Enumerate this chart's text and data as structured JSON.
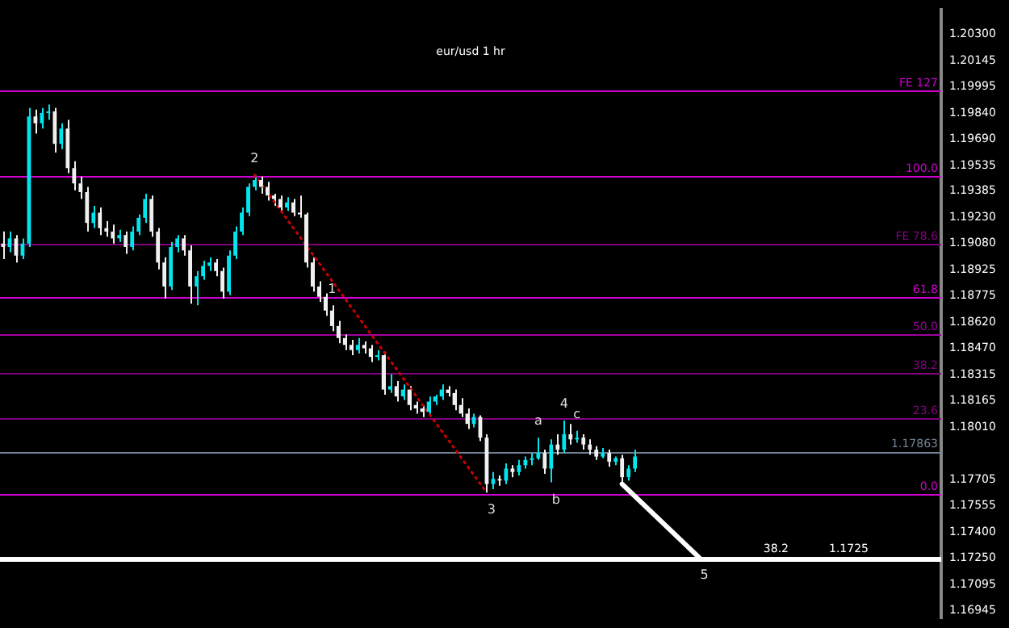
{
  "chart_data": {
    "type": "candlestick",
    "title": "eur/usd 1 hr",
    "categories": [
      null,
      null,
      null,
      null,
      null,
      null,
      null,
      null,
      null,
      null,
      null,
      null,
      null,
      null,
      null,
      null,
      null,
      null,
      null,
      null,
      null,
      null,
      null,
      null,
      null,
      null,
      null,
      null,
      null,
      null,
      null,
      null,
      null,
      null,
      null,
      null,
      null,
      null,
      null,
      null,
      null,
      null,
      null,
      null,
      null,
      null,
      null,
      null,
      null,
      null,
      null,
      null,
      null,
      null,
      null,
      null,
      null,
      null,
      null,
      null,
      null,
      null,
      null,
      null,
      null,
      null,
      null,
      null,
      null,
      null,
      null,
      null,
      null,
      null,
      null,
      null,
      null,
      null,
      null,
      null,
      null,
      null,
      null,
      null,
      null,
      null,
      null,
      null,
      null,
      null,
      null,
      null,
      null,
      null,
      null,
      null,
      null,
      null,
      null,
      null,
      null,
      null,
      null,
      null,
      null,
      null,
      null,
      null,
      null,
      null,
      null,
      null,
      null,
      null,
      null,
      null,
      null,
      null,
      null,
      null,
      null,
      null,
      null,
      null,
      null,
      null,
      null,
      null,
      null,
      null,
      null,
      null,
      null,
      null,
      null,
      null,
      null,
      null,
      null,
      null,
      null,
      null,
      null,
      null,
      null,
      null
    ],
    "ohlc": [
      [
        1.1908,
        1.1915,
        1.1899,
        1.1906
      ],
      [
        1.1906,
        1.1915,
        1.1903,
        1.1911
      ],
      [
        1.1911,
        1.1913,
        1.1897,
        1.1901
      ],
      [
        1.1901,
        1.1911,
        1.1899,
        1.1908
      ],
      [
        1.1908,
        1.1987,
        1.1906,
        1.1982
      ],
      [
        1.1982,
        1.1986,
        1.1972,
        1.1978
      ],
      [
        1.1978,
        1.1987,
        1.1975,
        1.1984
      ],
      [
        1.1984,
        1.1989,
        1.198,
        1.1985
      ],
      [
        1.1985,
        1.1987,
        1.1961,
        1.1966
      ],
      [
        1.1966,
        1.1978,
        1.1963,
        1.1975
      ],
      [
        1.1975,
        1.198,
        1.1949,
        1.1952
      ],
      [
        1.1952,
        1.1956,
        1.1939,
        1.1943
      ],
      [
        1.1943,
        1.1947,
        1.1934,
        1.1938
      ],
      [
        1.1938,
        1.1941,
        1.1915,
        1.192
      ],
      [
        1.192,
        1.193,
        1.1917,
        1.1926
      ],
      [
        1.1926,
        1.1929,
        1.1913,
        1.1917
      ],
      [
        1.1917,
        1.1921,
        1.1912,
        1.1915
      ],
      [
        1.1915,
        1.1919,
        1.1908,
        1.1911
      ],
      [
        1.1911,
        1.1916,
        1.1909,
        1.1913
      ],
      [
        1.1913,
        1.1915,
        1.1902,
        1.1906
      ],
      [
        1.1906,
        1.1918,
        1.1904,
        1.1915
      ],
      [
        1.1915,
        1.1925,
        1.1913,
        1.1923
      ],
      [
        1.1923,
        1.1937,
        1.192,
        1.1934
      ],
      [
        1.1934,
        1.1936,
        1.1912,
        1.1915
      ],
      [
        1.1915,
        1.1917,
        1.1893,
        1.1897
      ],
      [
        1.1897,
        1.19,
        1.1876,
        1.1883
      ],
      [
        1.1883,
        1.1909,
        1.1881,
        1.1906
      ],
      [
        1.1906,
        1.1913,
        1.1903,
        1.1911
      ],
      [
        1.1911,
        1.1913,
        1.1901,
        1.1904
      ],
      [
        1.1904,
        1.1907,
        1.1873,
        1.1883
      ],
      [
        1.1883,
        1.1892,
        1.1872,
        1.1889
      ],
      [
        1.1889,
        1.1898,
        1.1887,
        1.1895
      ],
      [
        1.1895,
        1.19,
        1.1892,
        1.1897
      ],
      [
        1.1897,
        1.1899,
        1.1889,
        1.1892
      ],
      [
        1.1892,
        1.1894,
        1.1876,
        1.188
      ],
      [
        1.188,
        1.1904,
        1.1878,
        1.1901
      ],
      [
        1.1901,
        1.1918,
        1.1899,
        1.1915
      ],
      [
        1.1915,
        1.1929,
        1.1913,
        1.1926
      ],
      [
        1.1926,
        1.1943,
        1.1924,
        1.1941
      ],
      [
        1.1941,
        1.1948,
        1.1939,
        1.1945
      ],
      [
        1.1945,
        1.1947,
        1.1937,
        1.1941
      ],
      [
        1.1941,
        1.1944,
        1.1933,
        1.1936
      ],
      [
        1.1936,
        1.1937,
        1.193,
        1.1934
      ],
      [
        1.1934,
        1.1936,
        1.1926,
        1.1929
      ],
      [
        1.1929,
        1.1935,
        1.1927,
        1.1932
      ],
      [
        1.1932,
        1.1934,
        1.1924,
        1.1926
      ],
      [
        1.1926,
        1.1936,
        1.1923,
        1.1925
      ],
      [
        1.1925,
        1.1926,
        1.1894,
        1.1897
      ],
      [
        1.1897,
        1.19,
        1.188,
        1.1883
      ],
      [
        1.1883,
        1.1886,
        1.1874,
        1.1877
      ],
      [
        1.1877,
        1.1879,
        1.1866,
        1.1869
      ],
      [
        1.1869,
        1.1872,
        1.1857,
        1.186
      ],
      [
        1.186,
        1.1863,
        1.185,
        1.1853
      ],
      [
        1.1853,
        1.1855,
        1.1846,
        1.1849
      ],
      [
        1.1849,
        1.1852,
        1.1843,
        1.1846
      ],
      [
        1.1846,
        1.1853,
        1.1844,
        1.1849
      ],
      [
        1.1849,
        1.1851,
        1.1844,
        1.1847
      ],
      [
        1.1847,
        1.1849,
        1.1839,
        1.1842
      ],
      [
        1.1842,
        1.1846,
        1.184,
        1.1843
      ],
      [
        1.1843,
        1.1845,
        1.182,
        1.1823
      ],
      [
        1.1823,
        1.1832,
        1.1821,
        1.1825
      ],
      [
        1.1825,
        1.1828,
        1.1816,
        1.1819
      ],
      [
        1.1819,
        1.1826,
        1.1817,
        1.1823
      ],
      [
        1.1823,
        1.1825,
        1.1811,
        1.1814
      ],
      [
        1.1814,
        1.1816,
        1.1809,
        1.1812
      ],
      [
        1.1812,
        1.1814,
        1.1807,
        1.181
      ],
      [
        1.181,
        1.1819,
        1.1808,
        1.1816
      ],
      [
        1.1816,
        1.182,
        1.1814,
        1.1819
      ],
      [
        1.1819,
        1.1826,
        1.1817,
        1.1823
      ],
      [
        1.1823,
        1.1825,
        1.1819,
        1.1821
      ],
      [
        1.1821,
        1.1823,
        1.1811,
        1.1814
      ],
      [
        1.1814,
        1.1818,
        1.1807,
        1.1809
      ],
      [
        1.1809,
        1.1812,
        1.18,
        1.1803
      ],
      [
        1.1803,
        1.1809,
        1.1801,
        1.1807
      ],
      [
        1.1807,
        1.1808,
        1.1793,
        1.1795
      ],
      [
        1.1795,
        1.1797,
        1.1763,
        1.1768
      ],
      [
        1.1768,
        1.1775,
        1.1765,
        1.1771
      ],
      [
        1.1771,
        1.1773,
        1.1767,
        1.177
      ],
      [
        1.177,
        1.178,
        1.1768,
        1.1777
      ],
      [
        1.1777,
        1.1779,
        1.1772,
        1.1775
      ],
      [
        1.1775,
        1.1782,
        1.1773,
        1.1779
      ],
      [
        1.1779,
        1.1784,
        1.1777,
        1.1782
      ],
      [
        1.1782,
        1.1786,
        1.1779,
        1.1783
      ],
      [
        1.1783,
        1.1795,
        1.1782,
        1.1786
      ],
      [
        1.1786,
        1.1788,
        1.1774,
        1.1777
      ],
      [
        1.1777,
        1.1794,
        1.1769,
        1.1791
      ],
      [
        1.1791,
        1.1797,
        1.1785,
        1.1788
      ],
      [
        1.1788,
        1.1805,
        1.1786,
        1.1797
      ],
      [
        1.1797,
        1.1803,
        1.1791,
        1.1794
      ],
      [
        1.1794,
        1.1799,
        1.1792,
        1.1795
      ],
      [
        1.1795,
        1.1797,
        1.1788,
        1.1791
      ],
      [
        1.1791,
        1.1794,
        1.1785,
        1.1788
      ],
      [
        1.1788,
        1.179,
        1.1782,
        1.1784
      ],
      [
        1.1784,
        1.1789,
        1.1783,
        1.1786
      ],
      [
        1.1786,
        1.1788,
        1.1778,
        1.1781
      ],
      [
        1.1781,
        1.1784,
        1.1779,
        1.1783
      ],
      [
        1.1783,
        1.1785,
        1.1768,
        1.1772
      ],
      [
        1.1772,
        1.1779,
        1.177,
        1.1777
      ],
      [
        1.1777,
        1.1788,
        1.1775,
        1.1784
      ],
      null,
      null,
      null,
      null,
      null,
      null,
      null,
      null,
      null,
      null,
      null,
      null,
      null,
      null,
      null,
      null,
      null,
      null,
      null,
      null,
      null,
      null,
      null,
      null,
      null,
      null,
      null,
      null,
      null,
      null,
      null,
      null,
      null,
      null,
      null,
      null,
      null,
      null,
      null,
      null,
      null,
      null,
      null,
      null,
      null,
      null,
      null
    ],
    "series": [
      {
        "type": "line",
        "color": "#ffffff",
        "line_style": "solid",
        "values": [
          null,
          null,
          null,
          null,
          null,
          null,
          null,
          null,
          null,
          null,
          null,
          null,
          null,
          null,
          null,
          null,
          null,
          null,
          null,
          null,
          null,
          null,
          null,
          null,
          null,
          null,
          null,
          null,
          null,
          null,
          null,
          null,
          null,
          null,
          null,
          null,
          null,
          null,
          null,
          null,
          null,
          null,
          null,
          null,
          null,
          null,
          null,
          null,
          null,
          null,
          null,
          null,
          null,
          null,
          null,
          null,
          null,
          null,
          null,
          null,
          null,
          null,
          null,
          null,
          null,
          null,
          null,
          null,
          null,
          null,
          null,
          null,
          null,
          null,
          null,
          null,
          null,
          null,
          null,
          null,
          null,
          null,
          null,
          null,
          null,
          null,
          null,
          null,
          null,
          null,
          null,
          null,
          null,
          null,
          null,
          null,
          1.1768,
          null,
          null,
          null,
          null,
          null,
          null,
          null,
          null,
          null,
          null,
          null,
          1.1725,
          null,
          null,
          null,
          null,
          null,
          null,
          null,
          null,
          null,
          null,
          null,
          null,
          null,
          null,
          null,
          null,
          null,
          null,
          null,
          null,
          null,
          null,
          null,
          null,
          null,
          null,
          null,
          null,
          null,
          null,
          null,
          null,
          null,
          null,
          null,
          null,
          null
        ]
      },
      {
        "type": "line",
        "color": "#cc0000",
        "line_style": "dotted",
        "values": [
          null,
          null,
          null,
          null,
          null,
          null,
          null,
          null,
          null,
          null,
          null,
          null,
          null,
          null,
          null,
          null,
          null,
          null,
          null,
          null,
          null,
          null,
          null,
          null,
          null,
          null,
          null,
          null,
          null,
          null,
          null,
          null,
          null,
          null,
          null,
          null,
          null,
          null,
          null,
          1.1948,
          null,
          null,
          null,
          null,
          null,
          null,
          null,
          null,
          null,
          null,
          null,
          null,
          null,
          null,
          null,
          null,
          null,
          null,
          null,
          null,
          null,
          null,
          null,
          null,
          null,
          null,
          null,
          null,
          null,
          null,
          null,
          null,
          null,
          null,
          null,
          1.1763,
          null,
          null,
          null,
          null,
          null,
          null,
          null,
          null,
          null,
          null,
          null,
          null,
          null,
          null,
          null,
          null,
          null,
          null,
          null,
          null,
          null,
          null,
          null,
          null,
          null,
          null,
          null,
          null,
          null,
          null,
          null,
          null,
          null,
          null,
          null,
          null,
          null,
          null,
          null,
          null,
          null,
          null,
          null,
          null,
          null,
          null,
          null,
          null,
          null,
          null,
          null,
          null,
          null,
          null,
          null,
          null,
          null,
          null,
          null,
          null,
          null,
          null,
          null,
          null,
          null,
          null,
          null,
          null,
          null,
          null
        ]
      }
    ],
    "ylim": [
      1.169,
      1.2044
    ],
    "yticks": [
      {
        "value": 1.203,
        "label": "1.20300"
      },
      {
        "value": 1.20145,
        "label": "1.20145"
      },
      {
        "value": 1.19995,
        "label": "1.19995"
      },
      {
        "value": 1.1984,
        "label": "1.19840"
      },
      {
        "value": 1.1969,
        "label": "1.19690"
      },
      {
        "value": 1.19535,
        "label": "1.19535"
      },
      {
        "value": 1.19385,
        "label": "1.19385"
      },
      {
        "value": 1.1923,
        "label": "1.19230"
      },
      {
        "value": 1.1908,
        "label": "1.19080"
      },
      {
        "value": 1.18925,
        "label": "1.18925"
      },
      {
        "value": 1.18775,
        "label": "1.18775"
      },
      {
        "value": 1.1862,
        "label": "1.18620"
      },
      {
        "value": 1.1847,
        "label": "1.18470"
      },
      {
        "value": 1.18315,
        "label": "1.18315"
      },
      {
        "value": 1.18165,
        "label": "1.18165"
      },
      {
        "value": 1.1801,
        "label": "1.18010"
      },
      {
        "value": 1.17705,
        "label": "1.17705"
      },
      {
        "value": 1.17555,
        "label": "1.17555"
      },
      {
        "value": 1.174,
        "label": "1.17400"
      },
      {
        "value": 1.1725,
        "label": "1.17250"
      },
      {
        "value": 1.17095,
        "label": "1.17095"
      },
      {
        "value": 1.16945,
        "label": "1.16945"
      }
    ],
    "ref_lines": [
      {
        "axis": "y",
        "value": 1.1997,
        "color": "#d000d0"
      },
      {
        "axis": "y",
        "value": 1.1947,
        "color": "#d000d0"
      },
      {
        "axis": "y",
        "value": 1.1908,
        "color": "#80007f"
      },
      {
        "axis": "y",
        "value": 1.1877,
        "color": "#d000d0"
      },
      {
        "axis": "y",
        "value": 1.1855,
        "color": "#a000a0"
      },
      {
        "axis": "y",
        "value": 1.1833,
        "color": "#80007f"
      },
      {
        "axis": "y",
        "value": 1.1806,
        "color": "#80007f"
      },
      {
        "axis": "y",
        "value": 1.1762,
        "color": "#d000d0"
      },
      {
        "axis": "y",
        "value": 1.17863,
        "label": "1.17863",
        "color": "#708090"
      },
      {
        "axis": "y",
        "value": 1.1725,
        "label": "1.1725",
        "color": "#ffffff"
      }
    ],
    "annotations": [
      {
        "text": "FE 127",
        "y": 1.1997
      },
      {
        "text": "100.0",
        "y": 1.1947
      },
      {
        "text": "FE 78.6",
        "y": 1.1908
      },
      {
        "text": "61.8",
        "y": 1.1877
      },
      {
        "text": "50.0",
        "y": 1.1855
      },
      {
        "text": "38.2",
        "y": 1.1833
      },
      {
        "text": "23.6",
        "y": 1.1806
      },
      {
        "text": "0.0",
        "y": 1.1762
      },
      {
        "text": "1",
        "y": 1.1872
      },
      {
        "text": "2",
        "y": 1.1948
      },
      {
        "text": "3",
        "y": 1.1763
      },
      {
        "text": "a",
        "y": 1.1795
      },
      {
        "text": "4",
        "y": 1.1805
      },
      {
        "text": "c",
        "y": 1.1799
      },
      {
        "text": "b",
        "y": 1.1769
      },
      {
        "text": "5",
        "y": 1.1725
      },
      "38.2"
    ],
    "tick_labels": "y",
    "legend": false,
    "grid": false
  }
}
